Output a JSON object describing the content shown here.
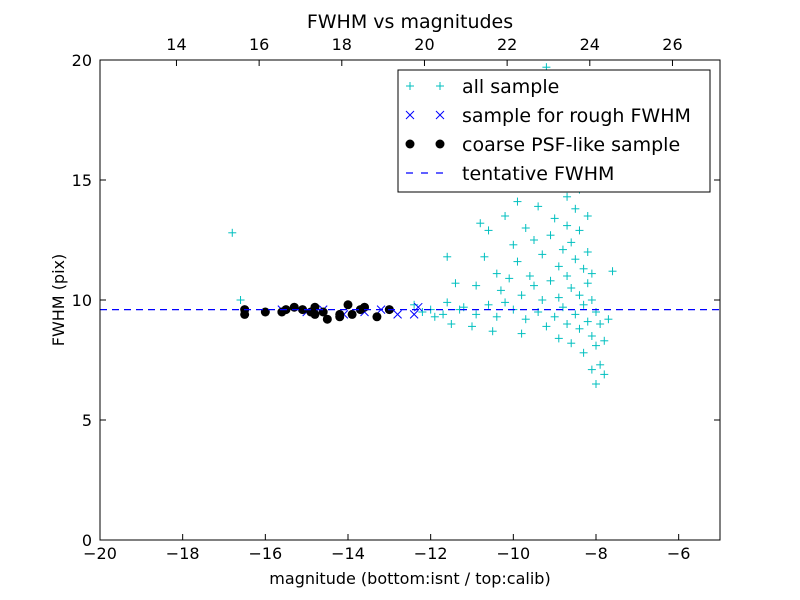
{
  "chart_data": {
    "type": "scatter",
    "title": "FWHM vs magnitudes",
    "xlabel": "magnitude (bottom:isnt / top:calib)",
    "ylabel": "FWHM (pix)",
    "xlim": [
      -20,
      -5
    ],
    "ylim": [
      0,
      20
    ],
    "top_xlim": [
      12.15,
      27.15
    ],
    "x_ticks": [
      -20,
      -18,
      -16,
      -14,
      -12,
      -10,
      -8,
      -6
    ],
    "x_tick_labels": [
      "−20",
      "−18",
      "−16",
      "−14",
      "−12",
      "−10",
      "−8",
      "−6"
    ],
    "y_ticks": [
      0,
      5,
      10,
      15,
      20
    ],
    "y_tick_labels": [
      "0",
      "5",
      "10",
      "15",
      "20"
    ],
    "top_x_ticks": [
      14,
      16,
      18,
      20,
      22,
      24,
      26
    ],
    "top_x_tick_labels": [
      "14",
      "16",
      "18",
      "20",
      "22",
      "24",
      "26"
    ],
    "grid": false,
    "legend_position": "top-right",
    "tentative_fwhm": 9.6,
    "series": [
      {
        "name": "all sample",
        "marker": "+",
        "color": "#00bfbf",
        "points": [
          [
            -16.8,
            12.8
          ],
          [
            -16.6,
            10.0
          ],
          [
            -12.4,
            9.8
          ],
          [
            -12.2,
            9.5
          ],
          [
            -12.0,
            9.6
          ],
          [
            -11.9,
            9.3
          ],
          [
            -11.8,
            14.8
          ],
          [
            -11.7,
            9.4
          ],
          [
            -11.6,
            11.8
          ],
          [
            -11.6,
            9.9
          ],
          [
            -11.5,
            9.0
          ],
          [
            -11.4,
            10.7
          ],
          [
            -11.3,
            9.6
          ],
          [
            -11.2,
            9.7
          ],
          [
            -11.1,
            15.6
          ],
          [
            -11.0,
            8.9
          ],
          [
            -10.9,
            9.4
          ],
          [
            -10.9,
            10.6
          ],
          [
            -10.8,
            13.2
          ],
          [
            -10.7,
            11.8
          ],
          [
            -10.6,
            9.8
          ],
          [
            -10.6,
            12.9
          ],
          [
            -10.5,
            8.7
          ],
          [
            -10.4,
            11.1
          ],
          [
            -10.4,
            9.3
          ],
          [
            -10.3,
            10.4
          ],
          [
            -10.2,
            13.5
          ],
          [
            -10.2,
            9.9
          ],
          [
            -10.1,
            16.0
          ],
          [
            -10.1,
            10.9
          ],
          [
            -10.0,
            12.3
          ],
          [
            -10.0,
            9.6
          ],
          [
            -9.9,
            14.1
          ],
          [
            -9.9,
            11.6
          ],
          [
            -9.8,
            10.2
          ],
          [
            -9.8,
            8.6
          ],
          [
            -9.7,
            13.0
          ],
          [
            -9.7,
            9.2
          ],
          [
            -9.6,
            15.4
          ],
          [
            -9.6,
            11.0
          ],
          [
            -9.5,
            12.5
          ],
          [
            -9.5,
            10.6
          ],
          [
            -9.4,
            17.1
          ],
          [
            -9.4,
            9.5
          ],
          [
            -9.4,
            13.9
          ],
          [
            -9.3,
            11.9
          ],
          [
            -9.3,
            10.0
          ],
          [
            -9.2,
            8.9
          ],
          [
            -9.2,
            14.8
          ],
          [
            -9.1,
            12.7
          ],
          [
            -9.1,
            10.8
          ],
          [
            -9.0,
            9.3
          ],
          [
            -9.0,
            16.3
          ],
          [
            -9.0,
            13.4
          ],
          [
            -8.9,
            11.4
          ],
          [
            -8.9,
            10.1
          ],
          [
            -8.9,
            8.4
          ],
          [
            -8.8,
            15.9
          ],
          [
            -8.8,
            12.1
          ],
          [
            -8.8,
            9.7
          ],
          [
            -8.8,
            18.4
          ],
          [
            -8.7,
            14.3
          ],
          [
            -8.7,
            11.0
          ],
          [
            -8.7,
            9.0
          ],
          [
            -8.7,
            13.1
          ],
          [
            -8.6,
            16.9
          ],
          [
            -8.6,
            12.4
          ],
          [
            -8.6,
            10.5
          ],
          [
            -8.6,
            8.2
          ],
          [
            -8.6,
            15.1
          ],
          [
            -8.5,
            11.7
          ],
          [
            -8.5,
            9.4
          ],
          [
            -8.5,
            13.8
          ],
          [
            -8.5,
            19.2
          ],
          [
            -8.4,
            12.9
          ],
          [
            -8.4,
            10.2
          ],
          [
            -8.4,
            8.8
          ],
          [
            -8.4,
            14.6
          ],
          [
            -8.3,
            11.3
          ],
          [
            -8.3,
            9.8
          ],
          [
            -8.3,
            16.5
          ],
          [
            -8.3,
            7.8
          ],
          [
            -8.2,
            12.0
          ],
          [
            -8.2,
            10.7
          ],
          [
            -8.2,
            9.1
          ],
          [
            -8.2,
            13.5
          ],
          [
            -8.1,
            11.1
          ],
          [
            -8.1,
            8.5
          ],
          [
            -8.1,
            7.1
          ],
          [
            -8.1,
            10.0
          ],
          [
            -8.0,
            9.5
          ],
          [
            -8.0,
            8.1
          ],
          [
            -8.0,
            6.5
          ],
          [
            -7.9,
            9.0
          ],
          [
            -7.9,
            7.3
          ],
          [
            -7.8,
            8.3
          ],
          [
            -7.8,
            6.9
          ],
          [
            -7.7,
            9.2
          ],
          [
            -7.6,
            11.2
          ],
          [
            -9.2,
            19.7
          ],
          [
            -9.6,
            19.1
          ],
          [
            -8.9,
            17.6
          ]
        ]
      },
      {
        "name": "sample for rough FWHM",
        "marker": "x",
        "color": "#0000ff",
        "points": [
          [
            -16.5,
            9.5
          ],
          [
            -15.6,
            9.6
          ],
          [
            -15.0,
            9.5
          ],
          [
            -14.6,
            9.6
          ],
          [
            -14.1,
            9.4
          ],
          [
            -13.6,
            9.5
          ],
          [
            -13.2,
            9.6
          ],
          [
            -12.8,
            9.4
          ],
          [
            -12.4,
            9.4
          ],
          [
            -12.3,
            9.7
          ]
        ]
      },
      {
        "name": "coarse PSF-like sample",
        "marker": "o",
        "color": "#000000",
        "points": [
          [
            -16.5,
            9.6
          ],
          [
            -16.5,
            9.4
          ],
          [
            -16.0,
            9.5
          ],
          [
            -15.6,
            9.5
          ],
          [
            -15.5,
            9.6
          ],
          [
            -15.3,
            9.7
          ],
          [
            -15.1,
            9.6
          ],
          [
            -14.9,
            9.5
          ],
          [
            -14.8,
            9.4
          ],
          [
            -14.8,
            9.7
          ],
          [
            -14.6,
            9.5
          ],
          [
            -14.5,
            9.2
          ],
          [
            -14.2,
            9.4
          ],
          [
            -14.2,
            9.3
          ],
          [
            -14.0,
            9.8
          ],
          [
            -13.9,
            9.4
          ],
          [
            -13.7,
            9.6
          ],
          [
            -13.6,
            9.7
          ],
          [
            -13.3,
            9.3
          ],
          [
            -13.0,
            9.6
          ]
        ]
      },
      {
        "name": "tentative FWHM",
        "marker": "dashed-line",
        "color": "#0000ff",
        "value": 9.6
      }
    ]
  }
}
